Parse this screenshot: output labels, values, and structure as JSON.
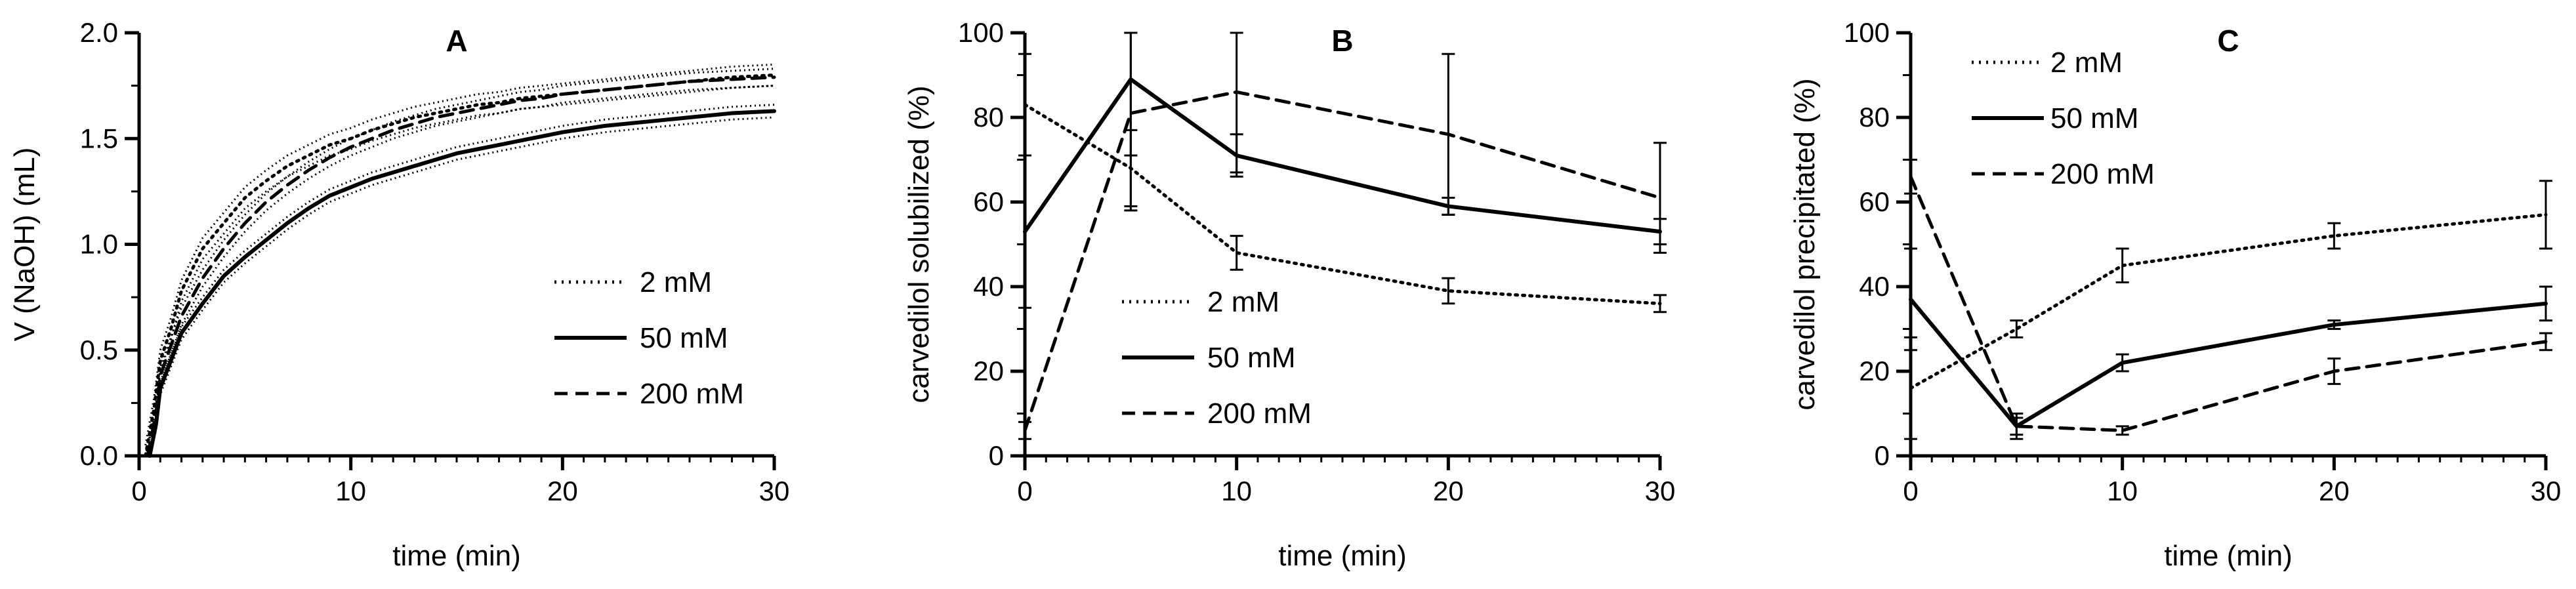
{
  "chart_data": [
    {
      "type": "line",
      "panel": "A",
      "title": "A",
      "xlabel": "time (min)",
      "ylabel": "V (NaOH) (mL)",
      "xlim": [
        0,
        30
      ],
      "ylim": [
        0,
        2.0
      ],
      "xticks": [
        0,
        10,
        20,
        30
      ],
      "yticks": [
        0.0,
        0.5,
        1.0,
        1.5,
        2.0
      ],
      "ytick_labels": [
        "0.0",
        "0.5",
        "1.0",
        "1.5",
        "2.0"
      ],
      "minor_x_step": 1,
      "legend": [
        {
          "name": "2 mM",
          "style": "dotted"
        },
        {
          "name": "50 mM",
          "style": "solid"
        },
        {
          "name": "200 mM",
          "style": "dashed"
        }
      ],
      "series": [
        {
          "name": "2 mM",
          "style": "dotted",
          "x": [
            0.3,
            0.7,
            1,
            1.5,
            2,
            3,
            4,
            5,
            6,
            7,
            8,
            9,
            10,
            11,
            12,
            13,
            14,
            15,
            16,
            17,
            18,
            19,
            20,
            22,
            24,
            26,
            28,
            30
          ],
          "y": [
            0,
            0.22,
            0.45,
            0.6,
            0.78,
            0.98,
            1.1,
            1.22,
            1.3,
            1.37,
            1.42,
            1.47,
            1.5,
            1.54,
            1.57,
            1.6,
            1.62,
            1.64,
            1.66,
            1.67,
            1.69,
            1.7,
            1.71,
            1.73,
            1.75,
            1.77,
            1.79,
            1.8
          ]
        },
        {
          "name": "50 mM",
          "style": "solid",
          "x": [
            0.5,
            0.8,
            1,
            1.5,
            2,
            3,
            4,
            5,
            6,
            7,
            8,
            9,
            10,
            11,
            12,
            13,
            14,
            15,
            16,
            17,
            18,
            19,
            20,
            22,
            24,
            26,
            28,
            30
          ],
          "y": [
            0,
            0.15,
            0.32,
            0.45,
            0.58,
            0.72,
            0.85,
            0.94,
            1.02,
            1.1,
            1.17,
            1.23,
            1.27,
            1.31,
            1.34,
            1.37,
            1.4,
            1.43,
            1.45,
            1.47,
            1.49,
            1.51,
            1.53,
            1.56,
            1.58,
            1.6,
            1.62,
            1.63
          ]
        },
        {
          "name": "200 mM",
          "style": "dashed",
          "x": [
            0.4,
            0.8,
            1,
            1.5,
            2,
            3,
            4,
            5,
            6,
            7,
            8,
            9,
            10,
            11,
            12,
            13,
            14,
            15,
            16,
            17,
            18,
            19,
            20,
            22,
            24,
            26,
            28,
            30
          ],
          "y": [
            0,
            0.2,
            0.38,
            0.52,
            0.66,
            0.84,
            0.98,
            1.1,
            1.2,
            1.28,
            1.35,
            1.41,
            1.46,
            1.5,
            1.54,
            1.57,
            1.6,
            1.62,
            1.64,
            1.66,
            1.68,
            1.69,
            1.71,
            1.73,
            1.75,
            1.77,
            1.78,
            1.79
          ]
        }
      ],
      "envelopes": [
        {
          "of": "2 mM",
          "offset": 0.05
        },
        {
          "of": "50 mM",
          "offset": 0.03
        },
        {
          "of": "200 mM",
          "offset": 0.04
        }
      ]
    },
    {
      "type": "line",
      "panel": "B",
      "title": "B",
      "xlabel": "time (min)",
      "ylabel": "carvedilol solubilized (%)",
      "xlim": [
        0,
        30
      ],
      "ylim": [
        0,
        100
      ],
      "xticks": [
        0,
        10,
        20,
        30
      ],
      "yticks": [
        0,
        20,
        40,
        60,
        80,
        100
      ],
      "ytick_labels": [
        "0",
        "20",
        "40",
        "60",
        "80",
        "100"
      ],
      "minor_x_step": 1,
      "legend": [
        {
          "name": "2 mM",
          "style": "dotted"
        },
        {
          "name": "50 mM",
          "style": "solid"
        },
        {
          "name": "200 mM",
          "style": "dashed"
        }
      ],
      "series": [
        {
          "name": "2 mM",
          "style": "dotted",
          "x": [
            0,
            5,
            10,
            20,
            30
          ],
          "y": [
            83,
            68,
            48,
            39,
            36
          ],
          "err": [
            12,
            9,
            4,
            3,
            2
          ]
        },
        {
          "name": "50 mM",
          "style": "solid",
          "x": [
            0,
            5,
            10,
            20,
            30
          ],
          "y": [
            53,
            89,
            71,
            59,
            53
          ],
          "err": [
            18,
            18,
            5,
            2,
            3
          ]
        },
        {
          "name": "200 mM",
          "style": "dashed",
          "x": [
            0,
            5,
            10,
            20,
            30
          ],
          "y": [
            6,
            81,
            86,
            76,
            61
          ],
          "err": [
            2,
            23,
            19,
            19,
            13
          ]
        }
      ]
    },
    {
      "type": "line",
      "panel": "C",
      "title": "C",
      "xlabel": "time (min)",
      "ylabel": "carvedilol precipitated (%)",
      "xlim": [
        0,
        30
      ],
      "ylim": [
        0,
        100
      ],
      "xticks": [
        0,
        10,
        20,
        30
      ],
      "yticks": [
        0,
        20,
        40,
        60,
        80,
        100
      ],
      "ytick_labels": [
        "0",
        "20",
        "40",
        "60",
        "80",
        "100"
      ],
      "minor_x_step": 1,
      "legend": [
        {
          "name": "2 mM",
          "style": "dotted"
        },
        {
          "name": "50 mM",
          "style": "solid"
        },
        {
          "name": "200 mM",
          "style": "dashed"
        }
      ],
      "series": [
        {
          "name": "2 mM",
          "style": "dotted",
          "x": [
            0,
            5,
            10,
            20,
            30
          ],
          "y": [
            16,
            30,
            45,
            52,
            57
          ],
          "err": [
            12,
            2,
            4,
            3,
            8
          ]
        },
        {
          "name": "50 mM",
          "style": "solid",
          "x": [
            0,
            5,
            10,
            20,
            30
          ],
          "y": [
            37,
            7,
            22,
            31,
            36
          ],
          "err": [
            12,
            3,
            2,
            1,
            4
          ]
        },
        {
          "name": "200 mM",
          "style": "dashed",
          "x": [
            0,
            5,
            10,
            20,
            30
          ],
          "y": [
            66,
            7,
            6,
            20,
            27
          ],
          "err": [
            4,
            2,
            1,
            3,
            2
          ]
        }
      ]
    }
  ]
}
